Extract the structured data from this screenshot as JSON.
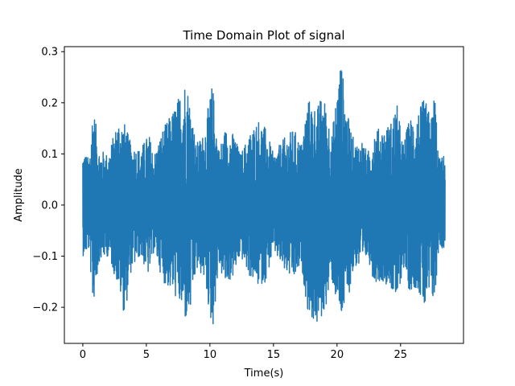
{
  "chart_data": {
    "type": "line",
    "title": "Time Domain Plot of signal",
    "xlabel": "Time(s)",
    "ylabel": "Amplitude",
    "xlim": [
      -1.45,
      29.95
    ],
    "ylim": [
      -0.2706,
      0.3098
    ],
    "x_ticks": [
      0,
      5,
      10,
      15,
      20,
      25
    ],
    "x_tick_labels": [
      "0",
      "5",
      "10",
      "15",
      "20",
      "25"
    ],
    "y_ticks": [
      -0.2,
      -0.1,
      0.0,
      0.1,
      0.2,
      0.3
    ],
    "y_tick_labels": [
      "−0.2",
      "−0.1",
      "0.0",
      "0.1",
      "0.2",
      "0.3"
    ],
    "grid": false,
    "series": [
      {
        "color": "#1f77b4",
        "x_range": [
          0,
          28.5
        ],
        "envelope": {
          "t": [
            0.0,
            0.5,
            0.8,
            1.3,
            2.0,
            2.8,
            3.3,
            3.8,
            4.5,
            5.2,
            5.6,
            6.3,
            7.0,
            7.5,
            8.1,
            8.5,
            8.9,
            9.5,
            10.2,
            10.7,
            11.2,
            11.9,
            12.4,
            13.1,
            13.8,
            14.4,
            15.0,
            15.8,
            16.6,
            17.2,
            17.7,
            18.4,
            18.9,
            19.6,
            20.3,
            20.8,
            21.4,
            22.0,
            22.4,
            22.9,
            23.6,
            24.2,
            24.7,
            25.2,
            25.7,
            26.3,
            26.9,
            27.4,
            27.7,
            28.0,
            28.5
          ],
          "upper": [
            0.11,
            0.09,
            0.2,
            0.11,
            0.1,
            0.17,
            0.16,
            0.12,
            0.11,
            0.14,
            0.1,
            0.15,
            0.18,
            0.21,
            0.25,
            0.2,
            0.12,
            0.14,
            0.24,
            0.11,
            0.15,
            0.14,
            0.1,
            0.14,
            0.17,
            0.15,
            0.1,
            0.13,
            0.15,
            0.12,
            0.21,
            0.19,
            0.22,
            0.14,
            0.29,
            0.18,
            0.12,
            0.13,
            0.1,
            0.15,
            0.15,
            0.16,
            0.2,
            0.12,
            0.17,
            0.18,
            0.21,
            0.17,
            0.23,
            0.09,
            0.1
          ],
          "lower": [
            -0.1,
            -0.09,
            -0.2,
            -0.11,
            -0.1,
            -0.16,
            -0.22,
            -0.13,
            -0.1,
            -0.14,
            -0.09,
            -0.15,
            -0.17,
            -0.19,
            -0.23,
            -0.21,
            -0.13,
            -0.14,
            -0.25,
            -0.12,
            -0.16,
            -0.14,
            -0.1,
            -0.14,
            -0.16,
            -0.15,
            -0.09,
            -0.13,
            -0.15,
            -0.12,
            -0.21,
            -0.24,
            -0.22,
            -0.15,
            -0.23,
            -0.19,
            -0.12,
            -0.13,
            -0.1,
            -0.15,
            -0.15,
            -0.16,
            -0.2,
            -0.12,
            -0.17,
            -0.16,
            -0.21,
            -0.18,
            -0.2,
            -0.08,
            -0.09
          ]
        }
      }
    ]
  }
}
